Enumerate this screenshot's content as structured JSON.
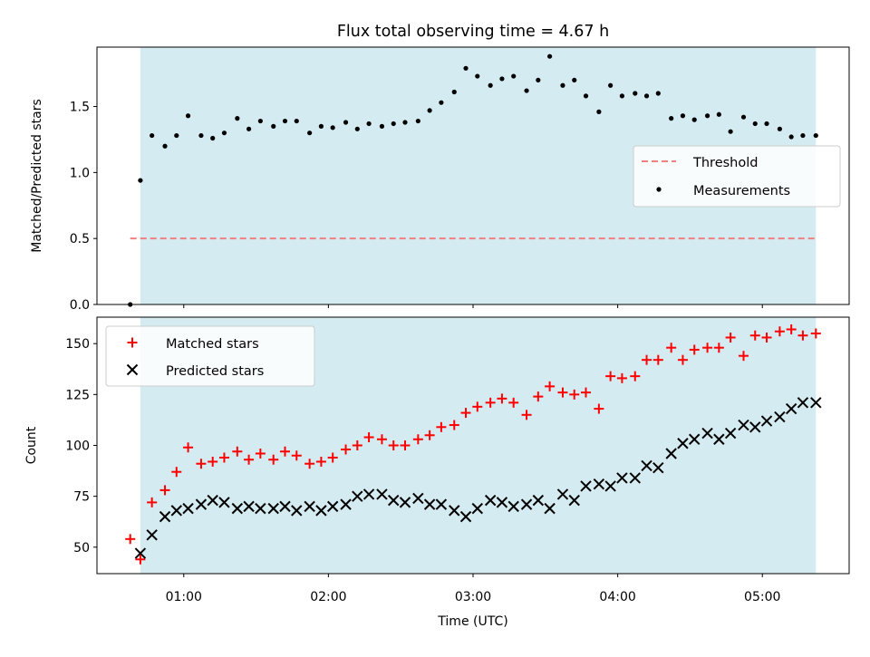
{
  "chart_data": [
    {
      "type": "scatter",
      "title": "Flux total observing time = 4.67 h",
      "xlabel": "",
      "ylabel": "Matched/Predicted stars",
      "xlim": [
        0.4,
        5.6
      ],
      "ylim": [
        0.0,
        1.95
      ],
      "yticks": [
        0.0,
        0.5,
        1.0,
        1.5
      ],
      "ytick_labels": [
        "0.0",
        "0.5",
        "1.0",
        "1.5"
      ],
      "grid": false,
      "legend_position": "right",
      "highlight_span": [
        0.7,
        5.37
      ],
      "threshold": {
        "name": "Threshold",
        "y": 0.5,
        "x_range": [
          0.63,
          5.37
        ],
        "color": "#f08080"
      },
      "series": [
        {
          "name": "Measurements",
          "color": "#000000",
          "x": [
            0.63,
            0.7,
            0.78,
            0.87,
            0.95,
            1.03,
            1.12,
            1.2,
            1.28,
            1.37,
            1.45,
            1.53,
            1.62,
            1.7,
            1.78,
            1.87,
            1.95,
            2.03,
            2.12,
            2.2,
            2.28,
            2.37,
            2.45,
            2.53,
            2.62,
            2.7,
            2.78,
            2.87,
            2.95,
            3.03,
            3.12,
            3.2,
            3.28,
            3.37,
            3.45,
            3.53,
            3.62,
            3.7,
            3.78,
            3.87,
            3.95,
            4.03,
            4.12,
            4.2,
            4.28,
            4.37,
            4.45,
            4.53,
            4.62,
            4.7,
            4.78,
            4.87,
            4.95,
            5.03,
            5.12,
            5.2,
            5.28,
            5.37
          ],
          "y": [
            0.0,
            0.94,
            1.28,
            1.2,
            1.28,
            1.43,
            1.28,
            1.26,
            1.3,
            1.41,
            1.33,
            1.39,
            1.35,
            1.39,
            1.39,
            1.3,
            1.35,
            1.34,
            1.38,
            1.33,
            1.37,
            1.35,
            1.37,
            1.38,
            1.39,
            1.47,
            1.53,
            1.61,
            1.79,
            1.73,
            1.66,
            1.71,
            1.73,
            1.62,
            1.7,
            1.88,
            1.66,
            1.7,
            1.58,
            1.46,
            1.66,
            1.58,
            1.6,
            1.58,
            1.6,
            1.41,
            1.43,
            1.4,
            1.43,
            1.44,
            1.31,
            1.42,
            1.37,
            1.37,
            1.33,
            1.27,
            1.28,
            1.28
          ]
        }
      ]
    },
    {
      "type": "scatter",
      "title": "",
      "xlabel": "Time (UTC)",
      "ylabel": "Count",
      "xlim": [
        0.4,
        5.6
      ],
      "ylim": [
        37,
        163
      ],
      "yticks": [
        50,
        75,
        100,
        125,
        150
      ],
      "ytick_labels": [
        "50",
        "75",
        "100",
        "125",
        "150"
      ],
      "xticks": [
        1,
        2,
        3,
        4,
        5
      ],
      "xtick_labels": [
        "01:00",
        "02:00",
        "03:00",
        "04:00",
        "05:00"
      ],
      "grid": false,
      "legend_position": "top-left",
      "highlight_span": [
        0.7,
        5.37
      ],
      "series": [
        {
          "name": "Matched stars",
          "marker": "plus",
          "color": "#ff0000",
          "x": [
            0.63,
            0.7,
            0.78,
            0.87,
            0.95,
            1.03,
            1.12,
            1.2,
            1.28,
            1.37,
            1.45,
            1.53,
            1.62,
            1.7,
            1.78,
            1.87,
            1.95,
            2.03,
            2.12,
            2.2,
            2.28,
            2.37,
            2.45,
            2.53,
            2.62,
            2.7,
            2.78,
            2.87,
            2.95,
            3.03,
            3.12,
            3.2,
            3.28,
            3.37,
            3.45,
            3.53,
            3.62,
            3.7,
            3.78,
            3.87,
            3.95,
            4.03,
            4.12,
            4.2,
            4.28,
            4.37,
            4.45,
            4.53,
            4.62,
            4.7,
            4.78,
            4.87,
            4.95,
            5.03,
            5.12,
            5.2,
            5.28,
            5.37
          ],
          "y": [
            54,
            44,
            72,
            78,
            87,
            99,
            91,
            92,
            94,
            97,
            93,
            96,
            93,
            97,
            95,
            91,
            92,
            94,
            98,
            100,
            104,
            103,
            100,
            100,
            103,
            105,
            109,
            110,
            116,
            119,
            121,
            123,
            121,
            115,
            124,
            129,
            126,
            125,
            126,
            118,
            134,
            133,
            134,
            142,
            142,
            148,
            142,
            147,
            148,
            148,
            153,
            144,
            154,
            153,
            156,
            157,
            154,
            155
          ]
        },
        {
          "name": "Predicted stars",
          "marker": "x",
          "color": "#000000",
          "x": [
            0.7,
            0.78,
            0.87,
            0.95,
            1.03,
            1.12,
            1.2,
            1.28,
            1.37,
            1.45,
            1.53,
            1.62,
            1.7,
            1.78,
            1.87,
            1.95,
            2.03,
            2.12,
            2.2,
            2.28,
            2.37,
            2.45,
            2.53,
            2.62,
            2.7,
            2.78,
            2.87,
            2.95,
            3.03,
            3.12,
            3.2,
            3.28,
            3.37,
            3.45,
            3.53,
            3.62,
            3.7,
            3.78,
            3.87,
            3.95,
            4.03,
            4.12,
            4.2,
            4.28,
            4.37,
            4.45,
            4.53,
            4.62,
            4.7,
            4.78,
            4.87,
            4.95,
            5.03,
            5.12,
            5.2,
            5.28,
            5.37
          ],
          "y": [
            47,
            56,
            65,
            68,
            69,
            71,
            73,
            72,
            69,
            70,
            69,
            69,
            70,
            68,
            70,
            68,
            70,
            71,
            75,
            76,
            76,
            73,
            72,
            74,
            71,
            71,
            68,
            65,
            69,
            73,
            72,
            70,
            71,
            73,
            69,
            76,
            73,
            80,
            81,
            80,
            84,
            84,
            90,
            89,
            96,
            101,
            103,
            106,
            103,
            106,
            110,
            109,
            112,
            114,
            118,
            121,
            121
          ]
        }
      ]
    }
  ],
  "colors": {
    "span": "#d4ebf1",
    "threshold": "#f08080",
    "matched": "#ff0000",
    "predicted": "#000000",
    "measurements": "#000000"
  }
}
